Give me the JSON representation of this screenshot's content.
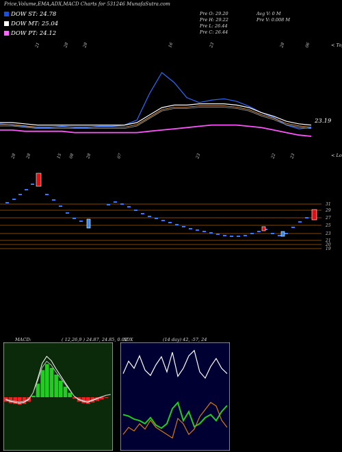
{
  "header": {
    "title": "Price,Volume,EMA,ADX,MACD Charts for 531246  MunafaSutra.com",
    "legend": [
      {
        "label": "DOW ST: 24.78",
        "color": "#1e4fd6"
      },
      {
        "label": "DOW MT: 25.04",
        "color": "#ffffff"
      },
      {
        "label": "DOW PT: 24.12",
        "color": "#ff66ff"
      }
    ],
    "stats_left": [
      "Pre  O: 29.20",
      "Pre  H: 29.22",
      "Pre  L: 26.44",
      "Pre  C: 26.44"
    ],
    "stats_right": [
      "Avg V: 0  M",
      "Pre  V: 0.008 M"
    ]
  },
  "price_panel": {
    "last_price_label": "23.19",
    "corner_label": "< Tops",
    "top_date_labels": [
      "21",
      "28",
      "28",
      "16",
      "23",
      "28",
      "06"
    ],
    "colors": {
      "price": "#ffffff",
      "ema_short": "#2e6bff",
      "ema_long": "#ff55ff",
      "mid": "#ffaa55"
    }
  },
  "lower_panel": {
    "corner_label": "< Lows",
    "bottom_date_labels": [
      "28",
      "28",
      "15",
      "08",
      "28",
      "07",
      "23",
      "22",
      "23"
    ],
    "y_ticks": [
      "31",
      "29",
      "27",
      "25",
      "23",
      "21",
      "20",
      "19"
    ],
    "colors": {
      "up_candle": "#dd1111",
      "down_candle": "#3388ee",
      "dot": "#3a78ff",
      "grid": "#b35a00"
    }
  },
  "chart_data": [
    {
      "type": "line",
      "title": "Price,Volume,EMA,ADX,MACD Charts for 531246",
      "series": [
        {
          "name": "DOW ST",
          "values": [
            25.1,
            25.0,
            24.9,
            24.8,
            24.8,
            24.9,
            24.8,
            24.8,
            24.9,
            24.9,
            25.0,
            25.4,
            27.5,
            29.2,
            28.4,
            27.2,
            26.8,
            27.0,
            27.1,
            26.9,
            26.5,
            26.0,
            25.6,
            25.0,
            24.7,
            24.8
          ]
        },
        {
          "name": "DOW MT",
          "values": [
            25.2,
            25.2,
            25.1,
            25.0,
            25.0,
            25.0,
            25.0,
            25.0,
            25.0,
            25.0,
            25.0,
            25.2,
            25.8,
            26.4,
            26.6,
            26.6,
            26.7,
            26.7,
            26.7,
            26.6,
            26.4,
            26.0,
            25.7,
            25.3,
            25.1,
            25.0
          ]
        },
        {
          "name": "DOW PT",
          "values": [
            24.6,
            24.6,
            24.5,
            24.5,
            24.5,
            24.5,
            24.4,
            24.4,
            24.4,
            24.4,
            24.4,
            24.4,
            24.5,
            24.6,
            24.7,
            24.8,
            24.9,
            25.0,
            25.0,
            25.0,
            24.9,
            24.8,
            24.6,
            24.4,
            24.2,
            24.1
          ]
        }
      ],
      "last_value": 23.19
    },
    {
      "type": "line",
      "title": "MACD",
      "header": "( 12,26,9 ) 24.87, 24.85, 0.02",
      "values": [
        -0.6,
        -0.8,
        -0.9,
        -1.0,
        -0.9,
        -0.6,
        0.2,
        1.8,
        3.6,
        4.4,
        3.9,
        3.0,
        2.2,
        1.4,
        0.6,
        -0.2,
        -0.6,
        -0.8,
        -0.9,
        -0.7,
        -0.5,
        -0.3,
        -0.1,
        0.0
      ]
    },
    {
      "type": "line",
      "title": "ADX",
      "header": "(14 day) 42, -57, 24",
      "series": [
        {
          "name": "ADX",
          "values": [
            38,
            52,
            44,
            58,
            42,
            36,
            48,
            57,
            40,
            62,
            35,
            44,
            58,
            64,
            40,
            33,
            46,
            55,
            44,
            38
          ]
        },
        {
          "name": "DI+",
          "values": [
            18,
            17,
            15,
            14,
            12,
            16,
            11,
            9,
            12,
            22,
            26,
            14,
            20,
            10,
            12,
            16,
            18,
            14,
            20,
            24
          ]
        },
        {
          "name": "DI-",
          "values": [
            6,
            10,
            8,
            12,
            9,
            14,
            10,
            8,
            6,
            4,
            15,
            12,
            6,
            9,
            16,
            20,
            24,
            22,
            14,
            10
          ]
        }
      ]
    }
  ]
}
